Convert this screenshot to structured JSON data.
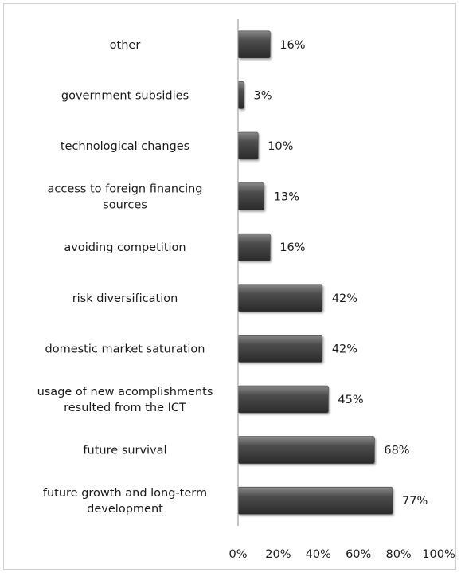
{
  "chart_data": {
    "type": "bar",
    "orientation": "horizontal",
    "categories": [
      "other",
      "government subsidies",
      "technological changes",
      "access to foreign financing sources",
      "avoiding competition",
      "risk diversification",
      "domestic market saturation",
      "usage of new acomplishments resulted from the ICT",
      "future survival",
      "future growth and long-term development"
    ],
    "category_lines": [
      [
        "other"
      ],
      [
        "government subsidies"
      ],
      [
        "technological changes"
      ],
      [
        "access to foreign financing",
        "sources"
      ],
      [
        "avoiding competition"
      ],
      [
        "risk diversification"
      ],
      [
        "domestic market saturation"
      ],
      [
        "usage of new acomplishments",
        "resulted from the ICT"
      ],
      [
        "future survival"
      ],
      [
        "future growth and long-term",
        "development"
      ]
    ],
    "values": [
      16,
      3,
      10,
      13,
      16,
      42,
      42,
      45,
      68,
      77
    ],
    "value_labels": [
      "16%",
      "3%",
      "10%",
      "13%",
      "16%",
      "42%",
      "42%",
      "45%",
      "68%",
      "77%"
    ],
    "xlim": [
      0,
      100
    ],
    "x_ticks": [
      0,
      20,
      40,
      60,
      80,
      100
    ],
    "x_tick_labels": [
      "0%",
      "20%",
      "40%",
      "60%",
      "80%",
      "100%"
    ],
    "bar_color": "#4d4d4d",
    "bar_highlight": "#8a8a8a",
    "bar_shadow": "#2a2a2a",
    "grid": false,
    "legend": "none"
  }
}
